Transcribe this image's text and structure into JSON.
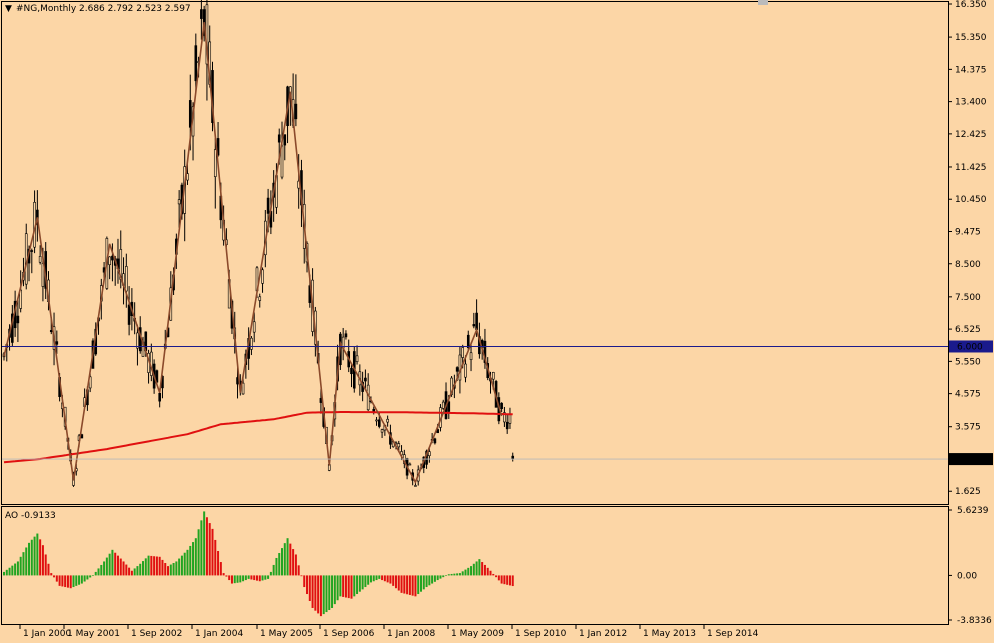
{
  "header": {
    "arrow": "▼",
    "text": "#NG,Monthly  2.686 2.792 2.523 2.597"
  },
  "indicator": {
    "label": "AO -0.9133"
  },
  "colors": {
    "background": "#fcd6a6",
    "candle": "#000000",
    "zigzag": "#8b4a2b",
    "moving_average": "#e01010",
    "level_line": "#1a1a8c",
    "ao_up": "#21a421",
    "ao_down": "#e01010",
    "grid": "#000000"
  },
  "chart_data": [
    {
      "type": "candlestick",
      "symbol": "#NG",
      "timeframe": "Monthly",
      "last_bar": {
        "open": 2.686,
        "high": 2.792,
        "low": 2.523,
        "close": 2.597
      },
      "price_axis_ticks": [
        "16.350",
        "15.350",
        "14.375",
        "13.400",
        "12.425",
        "11.425",
        "10.450",
        "9.475",
        "8.500",
        "7.500",
        "6.525",
        "5.550",
        "4.575",
        "3.575",
        "2.600",
        "1.625"
      ],
      "ylim": [
        1.3,
        16.35
      ],
      "time_axis_labels": [
        "1 Jan 2000",
        "1 May 2001",
        "1 Sep 2002",
        "1 Jan 2004",
        "1 May 2005",
        "1 Sep 2006",
        "1 Jan 2008",
        "1 May 2009",
        "1 Sep 2010",
        "1 Jan 2012",
        "1 May 2013",
        "1 Sep 2014"
      ],
      "horizontal_level": {
        "value": 6.0,
        "label": "6.000"
      },
      "current_price_label": "2.597",
      "zigzag_pivots": [
        {
          "date": "1999-12",
          "price": 5.7
        },
        {
          "date": "2000-12",
          "price": 9.9
        },
        {
          "date": "2002-01",
          "price": 1.95
        },
        {
          "date": "2003-02",
          "price": 9.1
        },
        {
          "date": "2004-08",
          "price": 4.6
        },
        {
          "date": "2005-12",
          "price": 15.8
        },
        {
          "date": "2007-01",
          "price": 4.6
        },
        {
          "date": "2008-07",
          "price": 13.7
        },
        {
          "date": "2009-09",
          "price": 2.4
        },
        {
          "date": "2010-01",
          "price": 6.1
        },
        {
          "date": "2012-04",
          "price": 1.9
        },
        {
          "date": "2014-02",
          "price": 6.5
        },
        {
          "date": "2014-11",
          "price": 3.9
        }
      ],
      "moving_average": [
        {
          "date": "1999-12",
          "value": 2.5
        },
        {
          "date": "2001-01",
          "value": 2.6
        },
        {
          "date": "2003-01",
          "value": 2.9
        },
        {
          "date": "2005-06",
          "value": 3.35
        },
        {
          "date": "2006-06",
          "value": 3.65
        },
        {
          "date": "2008-01",
          "value": 3.8
        },
        {
          "date": "2009-01",
          "value": 4.0
        },
        {
          "date": "2010-01",
          "value": 4.02
        },
        {
          "date": "2012-01",
          "value": 4.01
        },
        {
          "date": "2014-01",
          "value": 3.98
        },
        {
          "date": "2015-03",
          "value": 3.95
        }
      ]
    },
    {
      "type": "bar",
      "title": "AO",
      "last_value": -0.9133,
      "ylim": [
        -3.8336,
        5.6239
      ],
      "axis_ticks": [
        "5.6239",
        "0.00",
        "-3.8336"
      ],
      "envelope_knots": [
        {
          "date": "1999-12",
          "value": 0.3
        },
        {
          "date": "2000-05",
          "value": 1.2
        },
        {
          "date": "2000-09",
          "value": 2.8
        },
        {
          "date": "2000-12",
          "value": 3.6
        },
        {
          "date": "2001-02",
          "value": 2.6
        },
        {
          "date": "2001-05",
          "value": 0.2
        },
        {
          "date": "2001-08",
          "value": -0.9
        },
        {
          "date": "2001-12",
          "value": -1.1
        },
        {
          "date": "2002-04",
          "value": -0.7
        },
        {
          "date": "2002-08",
          "value": 0.0
        },
        {
          "date": "2002-12",
          "value": 1.2
        },
        {
          "date": "2003-03",
          "value": 2.2
        },
        {
          "date": "2003-07",
          "value": 1.2
        },
        {
          "date": "2003-10",
          "value": 0.4
        },
        {
          "date": "2004-01",
          "value": 1.0
        },
        {
          "date": "2004-04",
          "value": 1.7
        },
        {
          "date": "2004-08",
          "value": 1.6
        },
        {
          "date": "2004-11",
          "value": 0.8
        },
        {
          "date": "2005-02",
          "value": 1.2
        },
        {
          "date": "2005-06",
          "value": 2.2
        },
        {
          "date": "2005-09",
          "value": 3.2
        },
        {
          "date": "2005-12",
          "value": 5.5
        },
        {
          "date": "2006-03",
          "value": 4.0
        },
        {
          "date": "2006-07",
          "value": 0.2
        },
        {
          "date": "2006-10",
          "value": -0.7
        },
        {
          "date": "2007-01",
          "value": -0.6
        },
        {
          "date": "2007-04",
          "value": -0.3
        },
        {
          "date": "2007-08",
          "value": -0.5
        },
        {
          "date": "2007-11",
          "value": -0.3
        },
        {
          "date": "2008-02",
          "value": 1.5
        },
        {
          "date": "2008-06",
          "value": 3.2
        },
        {
          "date": "2008-09",
          "value": 1.8
        },
        {
          "date": "2008-12",
          "value": -1.0
        },
        {
          "date": "2009-03",
          "value": -2.8
        },
        {
          "date": "2009-06",
          "value": -3.5
        },
        {
          "date": "2009-10",
          "value": -2.8
        },
        {
          "date": "2010-01",
          "value": -1.8
        },
        {
          "date": "2010-05",
          "value": -2.0
        },
        {
          "date": "2010-09",
          "value": -1.2
        },
        {
          "date": "2010-12",
          "value": -0.6
        },
        {
          "date": "2011-03",
          "value": -0.3
        },
        {
          "date": "2011-07",
          "value": -0.7
        },
        {
          "date": "2011-11",
          "value": -1.5
        },
        {
          "date": "2012-04",
          "value": -1.8
        },
        {
          "date": "2012-08",
          "value": -1.0
        },
        {
          "date": "2012-12",
          "value": -0.4
        },
        {
          "date": "2013-04",
          "value": 0.1
        },
        {
          "date": "2013-08",
          "value": 0.2
        },
        {
          "date": "2013-12",
          "value": 0.8
        },
        {
          "date": "2014-03",
          "value": 1.4
        },
        {
          "date": "2014-07",
          "value": 0.4
        },
        {
          "date": "2014-11",
          "value": -0.7
        },
        {
          "date": "2015-03",
          "value": -0.9133
        }
      ]
    }
  ]
}
